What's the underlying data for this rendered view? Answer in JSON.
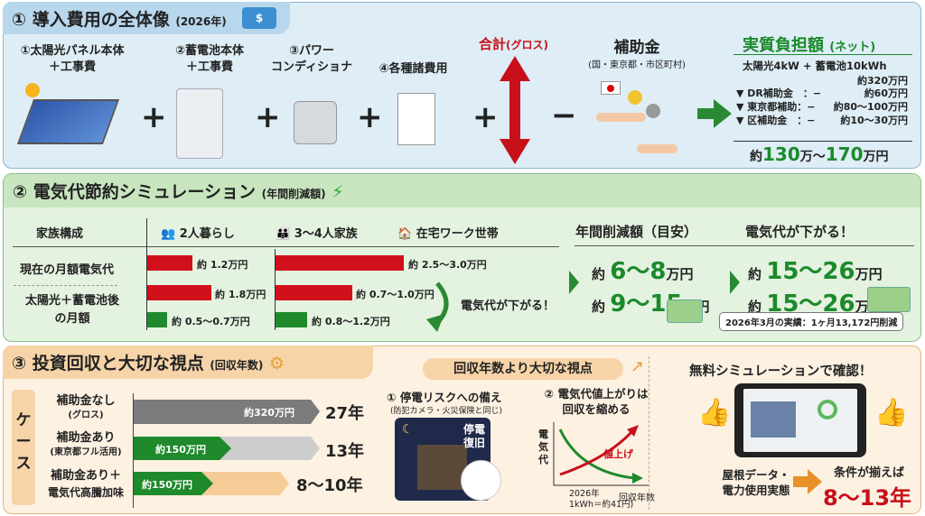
{
  "s1": {
    "title": "① 導入費用の全体像",
    "year": "(2026年)",
    "items": [
      {
        "l1": "①太陽光パネル本体",
        "l2": "＋工事費"
      },
      {
        "l1": "②蓄電池本体",
        "l2": "＋工事費"
      },
      {
        "l1": "③パワー",
        "l2": "コンディショナ"
      },
      {
        "l1": "④各種諸費用",
        "l2": ""
      }
    ],
    "plus": "+",
    "minus": "−",
    "total_label": "合計",
    "total_sub": "(グロス)",
    "subsidy": "補助金",
    "subsidy_sub": "(国・東京都・市区町村)",
    "net": {
      "title": "実質負担額",
      "title_sub": "(ネット)",
      "system": "太陽光4kW + 蓄電池10kWh",
      "gross": "約320万円",
      "rows": [
        {
          "k": "▼ DR補助金　：−",
          "v": "約60万円"
        },
        {
          "k": "▼ 東京都補助：−",
          "v": "約80〜100万円"
        },
        {
          "k": "▼ 区補助金　：−",
          "v": "約10〜30万円"
        }
      ],
      "total_pre": "約",
      "total_a": "130",
      "total_m1": "万〜",
      "total_b": "170",
      "total_m2": "万円"
    }
  },
  "s2": {
    "title": "② 電気代節約シミュレーション",
    "title_sub": "(年間削減額)",
    "col0": "家族構成",
    "col1": "2人暮らし",
    "col2": "3〜4人家族",
    "col3": "在宅ワーク世帯",
    "row1": "現在の月額電気代",
    "row2a": "太陽光＋蓄電池後",
    "row2b": "の月額",
    "bars": {
      "r1c1": "約 1.2万円",
      "r1c2": "約 2.5〜3.0万円",
      "r2c1": "約 1.8万円",
      "r2c2": "約 0.7〜1.0万円",
      "r3c1": "約 0.5〜0.7万円",
      "r3c2": "約 0.8〜1.2万円"
    },
    "down_note": "電気代が下がる！",
    "annual_h": "年間削減額（目安）",
    "down_h": "電気代が下がる！",
    "v1": {
      "pre": "約",
      "num": "6〜8",
      "unit": "万円"
    },
    "v2": {
      "pre": "約",
      "num": "9〜15",
      "unit": "万円"
    },
    "v3": {
      "pre": "約",
      "num": "15〜26",
      "unit": "万円"
    },
    "v4": {
      "pre": "約",
      "num": "15〜26",
      "unit": "万円"
    },
    "actual": "2026年3月の実績：1ヶ月13,172円削減"
  },
  "s3": {
    "title": "③ 投資回収と大切な視点",
    "title_sub": "(回収年数)",
    "case": "ケース",
    "cases": [
      {
        "l1": "補助金なし",
        "l2": "(グロス)",
        "bar": "約320万円",
        "years": "27年"
      },
      {
        "l1": "補助金あり",
        "l2": "(東京都フル活用)",
        "bar": "約150万円",
        "years": "13年"
      },
      {
        "l1": "補助金あり＋",
        "l2": "電気代高騰加味",
        "bar": "約150万円",
        "years": "8〜10年"
      }
    ],
    "pill": "回収年数より大切な視点",
    "p1": "① 停電リスクへの備え",
    "p1s": "(防犯カメラ・火災保険と同じ)",
    "outage": "停電",
    "restore": "復旧",
    "p2a": "② 電気代値上がりは",
    "p2b": "回収を縮める",
    "y_axis": "電気代",
    "rise": "値上げ",
    "x_axis": "回収年数",
    "x_note1": "2026年",
    "x_note2": "1kWh＝約41円)",
    "sim_title": "無料シミュレーションで確認！",
    "data1": "屋根データ・",
    "data2": "電力使用実態",
    "cond": "条件が揃えば",
    "result": "8〜13年"
  }
}
